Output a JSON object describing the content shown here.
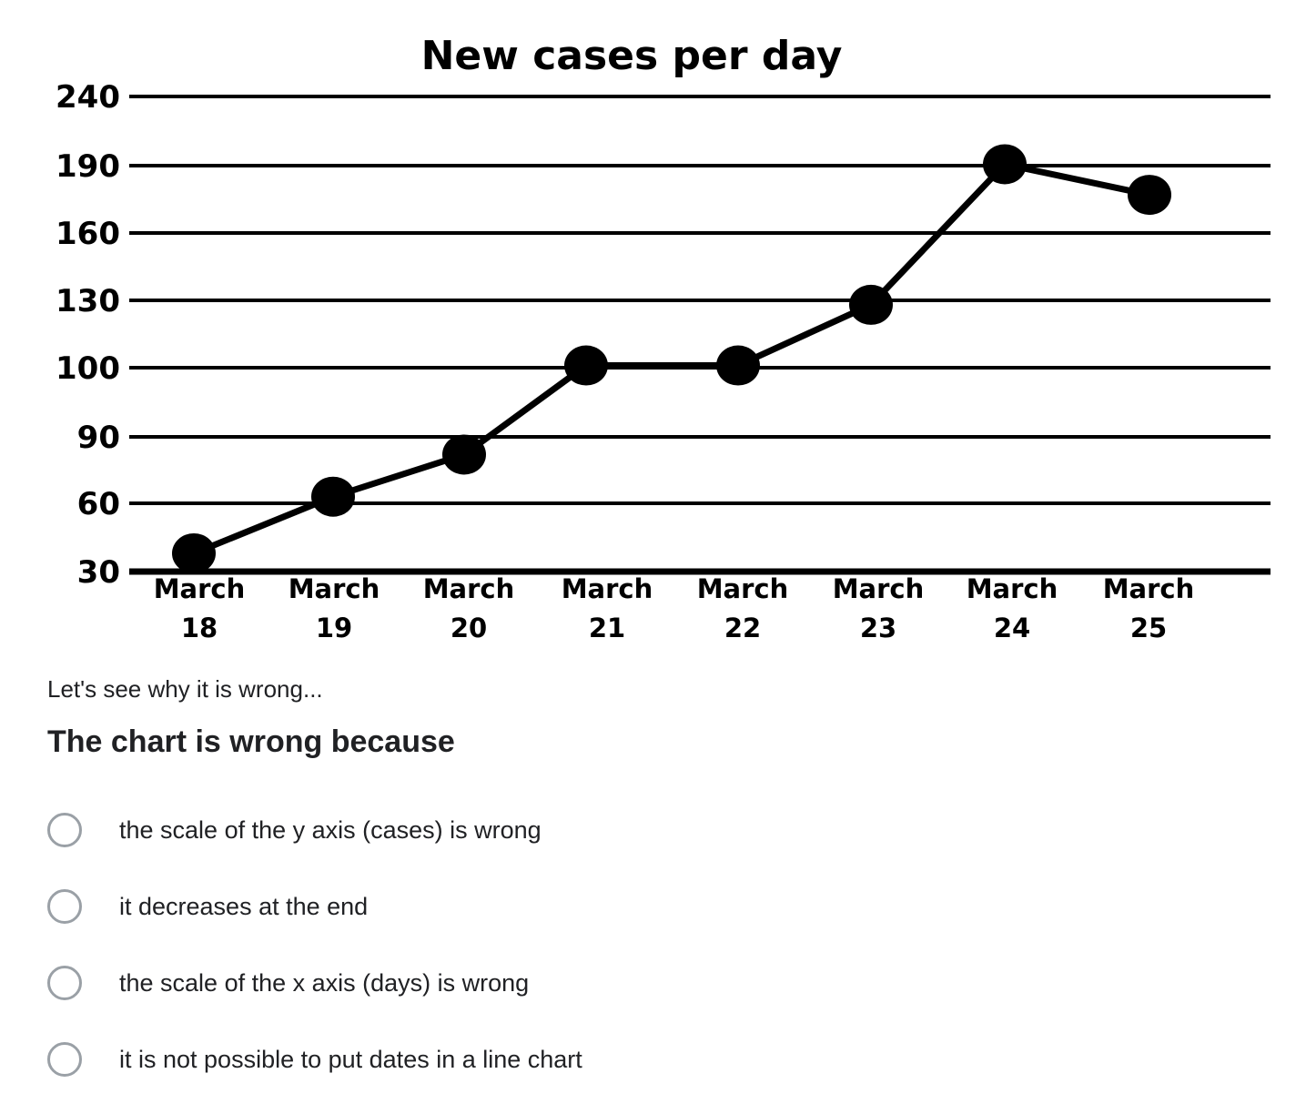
{
  "chart_data": {
    "type": "line",
    "title": "New cases per day",
    "categories": [
      "March 18",
      "March 19",
      "March 20",
      "March 21",
      "March 22",
      "March 23",
      "March 24",
      "March 25"
    ],
    "category_lines": [
      [
        "March",
        "18"
      ],
      [
        "March",
        "19"
      ],
      [
        "March",
        "20"
      ],
      [
        "March",
        "21"
      ],
      [
        "March",
        "22"
      ],
      [
        "March",
        "23"
      ],
      [
        "March",
        "24"
      ],
      [
        "March",
        "25"
      ]
    ],
    "y_ticks": [
      "30",
      "60",
      "90",
      "100",
      "130",
      "160",
      "190",
      "240"
    ],
    "values": [
      38,
      63,
      82,
      101,
      101,
      128,
      191,
      177
    ],
    "xlabel": "",
    "ylabel": "",
    "grid": true,
    "legend": false,
    "line_color": "#000000"
  },
  "form": {
    "intro_text": "Let's see why it is wrong...",
    "question": "The chart is wrong because",
    "options": [
      {
        "label": "the scale of the y axis (cases) is wrong",
        "selected": false
      },
      {
        "label": "it decreases at the end",
        "selected": false
      },
      {
        "label": "the scale of the x axis (days) is wrong",
        "selected": false
      },
      {
        "label": "it is not possible to put dates in a line chart",
        "selected": false
      }
    ]
  },
  "colors": {
    "text": "#202124",
    "radio_border": "#9aa0a6",
    "chart_ink": "#000000"
  }
}
